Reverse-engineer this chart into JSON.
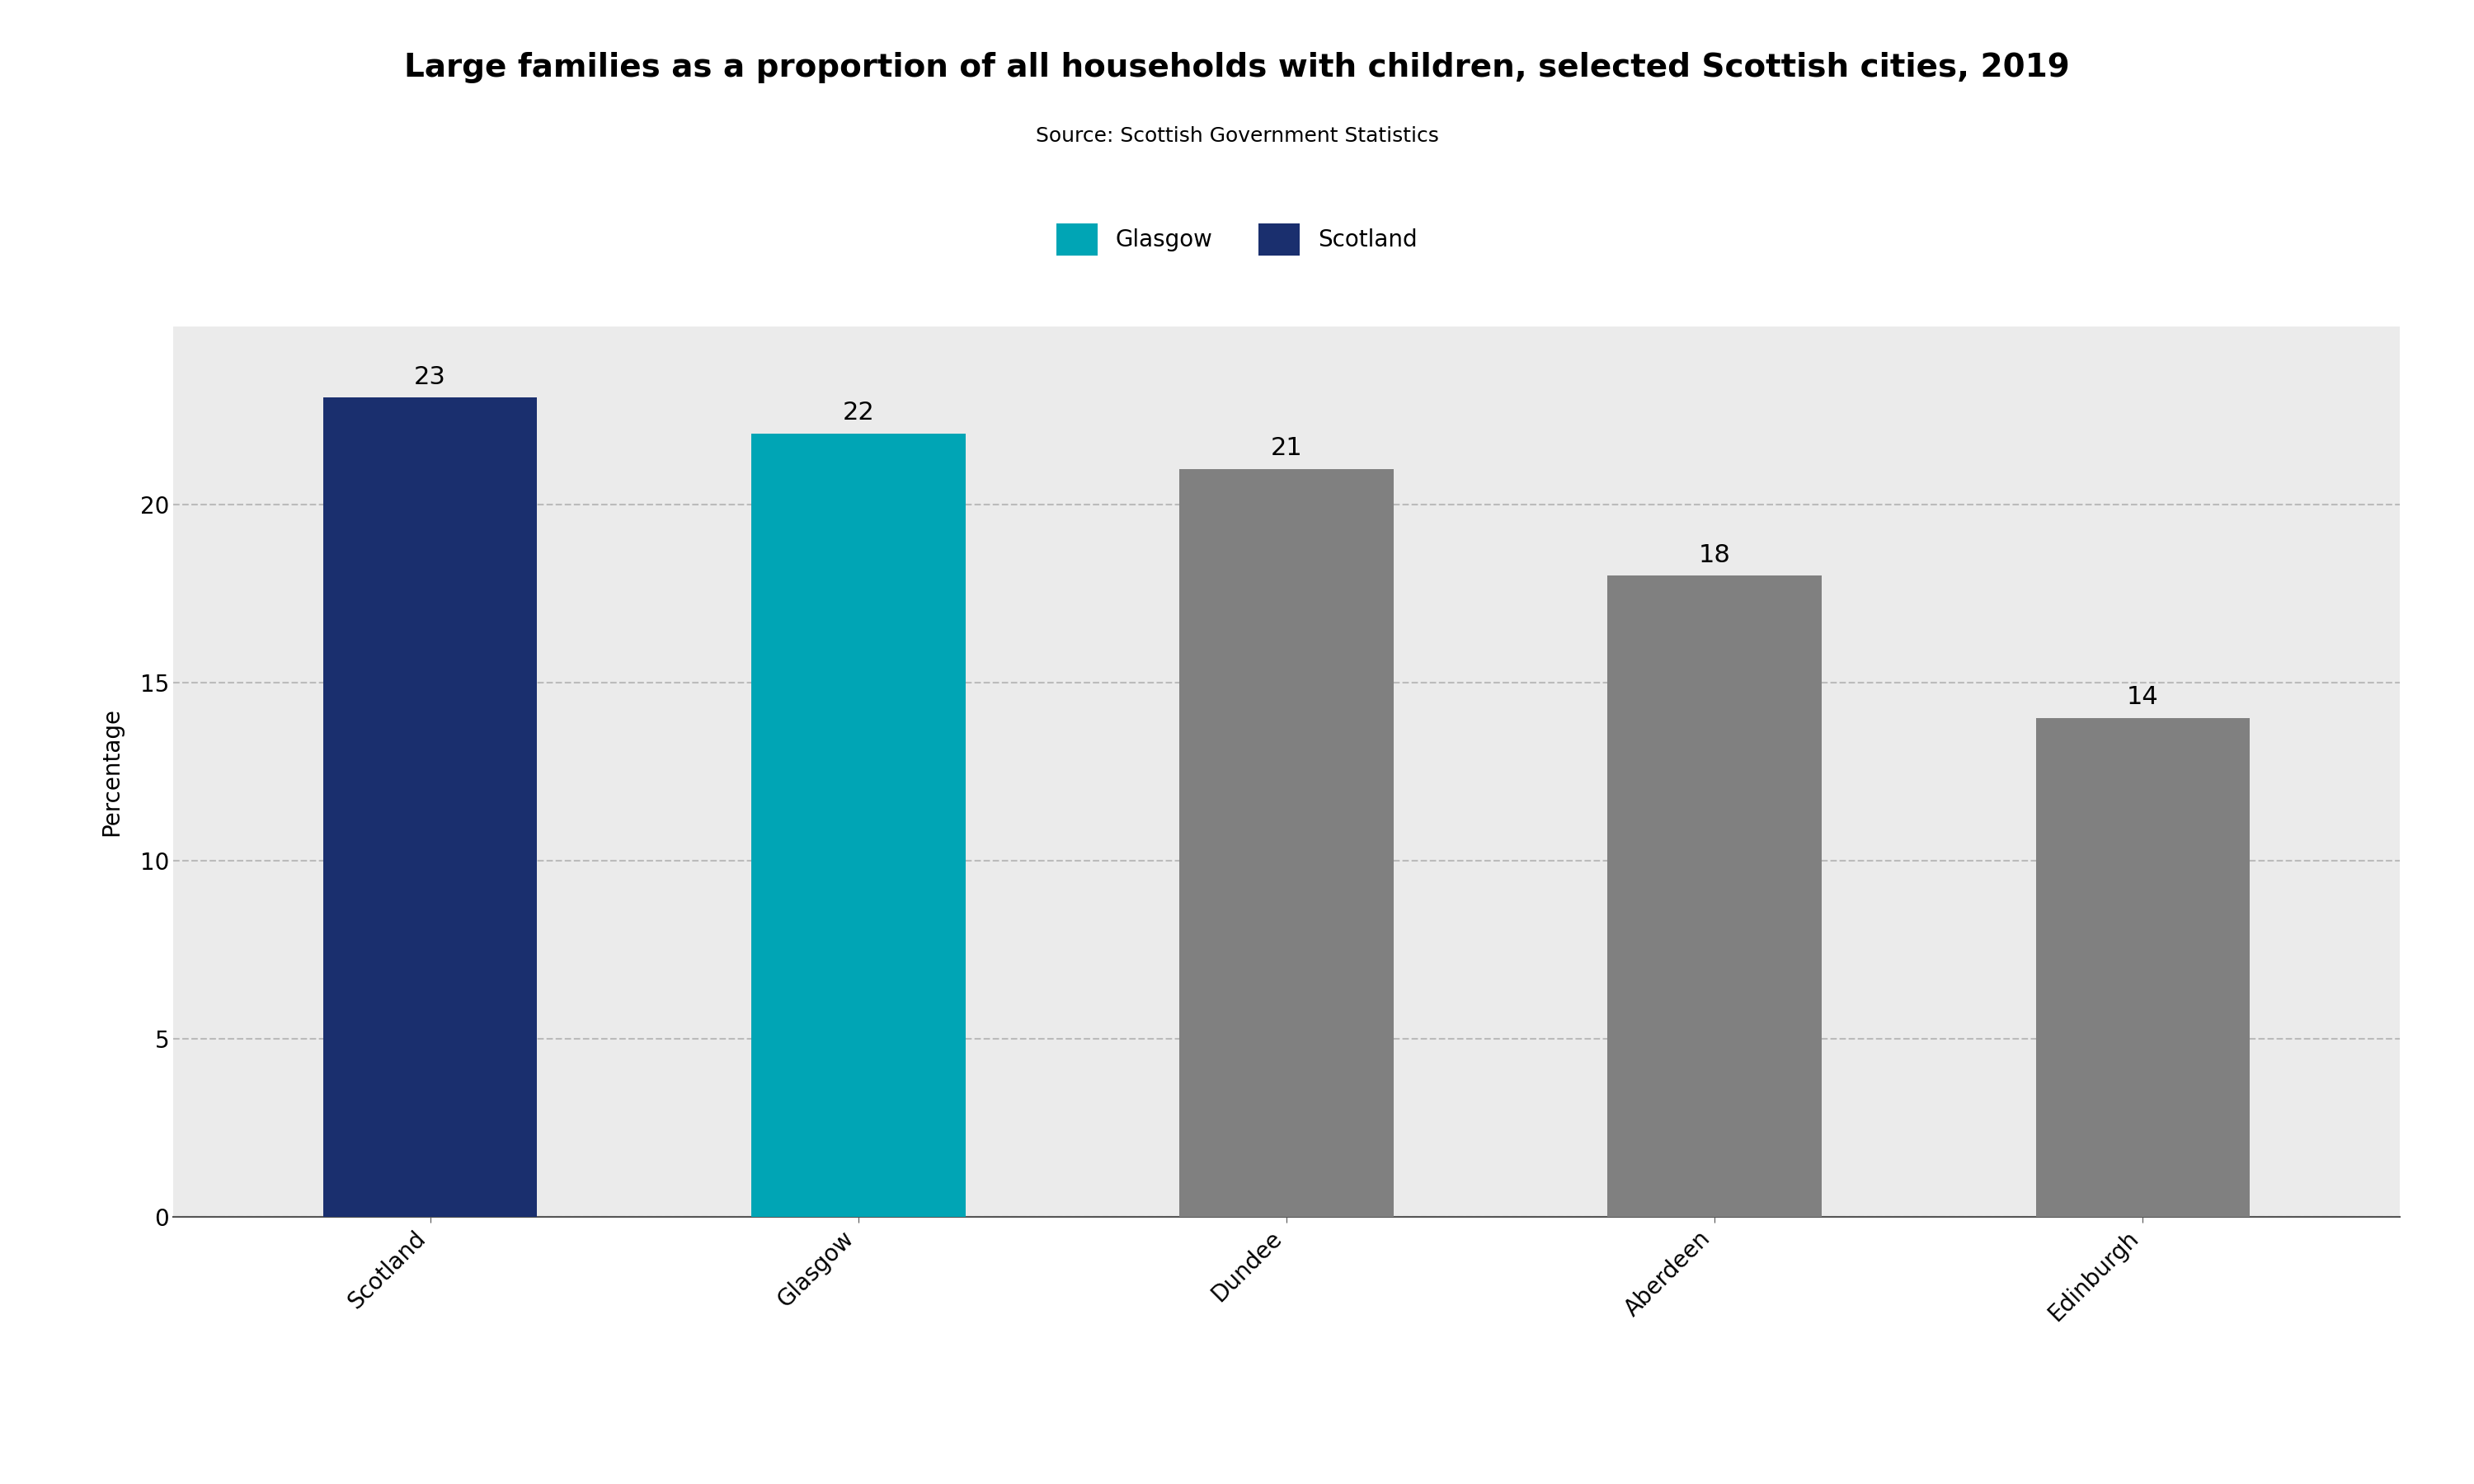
{
  "title": "Large families as a proportion of all households with children, selected Scottish cities, 2019",
  "source": "Source: Scottish Government Statistics",
  "ylabel": "Percentage",
  "categories": [
    "Scotland",
    "Glasgow",
    "Dundee",
    "Aberdeen",
    "Edinburgh"
  ],
  "values": [
    23,
    22,
    21,
    18,
    14
  ],
  "bar_colors": [
    "#1a2f6e",
    "#00a5b5",
    "#808080",
    "#808080",
    "#808080"
  ],
  "ylim": [
    0,
    25
  ],
  "yticks": [
    0,
    5,
    10,
    15,
    20
  ],
  "legend_labels": [
    "Glasgow",
    "Scotland"
  ],
  "legend_colors": [
    "#00a5b5",
    "#1a2f6e"
  ],
  "title_fontsize": 28,
  "source_fontsize": 18,
  "label_fontsize": 20,
  "tick_fontsize": 20,
  "value_fontsize": 22,
  "legend_fontsize": 20,
  "plot_bg_color": "#ebebeb",
  "fig_bg_color": "#ffffff",
  "grid_color": "#bbbbbb",
  "bar_width": 0.5
}
